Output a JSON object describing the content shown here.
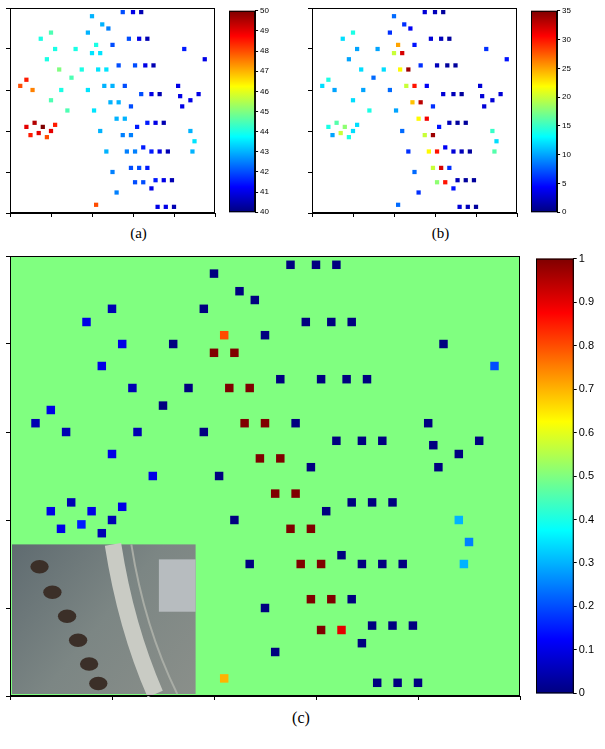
{
  "chart_data": [
    {
      "type": "scatter",
      "title": "(a)",
      "xlim": [
        0,
        100
      ],
      "ylim": [
        0,
        100
      ],
      "xticks": [
        0,
        20,
        40,
        60,
        80,
        100
      ],
      "yticks": [
        0,
        20,
        40,
        60,
        80,
        100
      ],
      "tick_labels": false,
      "colorbar": {
        "range": [
          40,
          50
        ],
        "ticks": [
          40,
          41,
          42,
          43,
          44,
          45,
          46,
          47,
          48,
          49,
          50
        ]
      },
      "points": [
        [
          40,
          78,
          43.5
        ],
        [
          43,
          70,
          43.5
        ],
        [
          46,
          62,
          43
        ],
        [
          49,
          54,
          43
        ],
        [
          52,
          46,
          43
        ],
        [
          55,
          38,
          42.5
        ],
        [
          57,
          30,
          42.5
        ],
        [
          59,
          22,
          42
        ],
        [
          61,
          15,
          42
        ],
        [
          44,
          78,
          43.5
        ],
        [
          47,
          70,
          43.5
        ],
        [
          50,
          62,
          43
        ],
        [
          53,
          54,
          43
        ],
        [
          56,
          46,
          43
        ],
        [
          59,
          38,
          42.5
        ],
        [
          61,
          30,
          42.5
        ],
        [
          63,
          22,
          42
        ],
        [
          65,
          15,
          42
        ],
        [
          32,
          80,
          44
        ],
        [
          35,
          70,
          44
        ],
        [
          38,
          60,
          43.5
        ],
        [
          41,
          50,
          43.5
        ],
        [
          44,
          40,
          43
        ],
        [
          47,
          30,
          43
        ],
        [
          50,
          20,
          42.5
        ],
        [
          52,
          10,
          42.5
        ],
        [
          50,
          82,
          42
        ],
        [
          53,
          72,
          42
        ],
        [
          56,
          62,
          42
        ],
        [
          59,
          52,
          42
        ],
        [
          62,
          42,
          41.5
        ],
        [
          65,
          32,
          41.5
        ],
        [
          67,
          22,
          41.5
        ],
        [
          69,
          12,
          41
        ],
        [
          48,
          90,
          42.5
        ],
        [
          38,
          88,
          43
        ],
        [
          55,
          98,
          42
        ],
        [
          58,
          85,
          42
        ],
        [
          61,
          72,
          42
        ],
        [
          64,
          58,
          42
        ],
        [
          67,
          44,
          41.5
        ],
        [
          69,
          30,
          41.5
        ],
        [
          71,
          16,
          41.5
        ],
        [
          72,
          3,
          41
        ],
        [
          60,
          98,
          41
        ],
        [
          63,
          85,
          41
        ],
        [
          66,
          72,
          41
        ],
        [
          69,
          58,
          41
        ],
        [
          71,
          44,
          41
        ],
        [
          73,
          30,
          41
        ],
        [
          75,
          16,
          41
        ],
        [
          76,
          3,
          41
        ],
        [
          64,
          98,
          40.5
        ],
        [
          67,
          85,
          40.5
        ],
        [
          70,
          72,
          40.5
        ],
        [
          73,
          58,
          40.5
        ],
        [
          75,
          44,
          40.5
        ],
        [
          77,
          30,
          40.5
        ],
        [
          79,
          16,
          40.5
        ],
        [
          80,
          3,
          40.5
        ],
        [
          40,
          96,
          43
        ],
        [
          45,
          92,
          43
        ],
        [
          8,
          42,
          49
        ],
        [
          12,
          44,
          49.5
        ],
        [
          16,
          42,
          50
        ],
        [
          20,
          40,
          49
        ],
        [
          10,
          38,
          48.5
        ],
        [
          14,
          39,
          49
        ],
        [
          18,
          37,
          48
        ],
        [
          22,
          43,
          48.5
        ],
        [
          5,
          62,
          48
        ],
        [
          8,
          65,
          48.5
        ],
        [
          11,
          60,
          47.5
        ],
        [
          20,
          55,
          44.5
        ],
        [
          25,
          60,
          44
        ],
        [
          28,
          50,
          44.5
        ],
        [
          24,
          70,
          45
        ],
        [
          18,
          75,
          44
        ],
        [
          30,
          66,
          44.5
        ],
        [
          42,
          4,
          48
        ],
        [
          88,
          40,
          43
        ],
        [
          90,
          35,
          43.5
        ],
        [
          89,
          30,
          43
        ],
        [
          82,
          62,
          41
        ],
        [
          83,
          57,
          41
        ],
        [
          84,
          52,
          41
        ],
        [
          88,
          55,
          41
        ],
        [
          92,
          58,
          41
        ],
        [
          95,
          75,
          41
        ],
        [
          85,
          80,
          41.5
        ],
        [
          15,
          85,
          44
        ],
        [
          20,
          88,
          44.5
        ],
        [
          22,
          80,
          44
        ],
        [
          42,
          82,
          44
        ]
      ]
    },
    {
      "type": "scatter",
      "title": "(b)",
      "xlim": [
        0,
        100
      ],
      "ylim": [
        0,
        100
      ],
      "xticks": [
        0,
        20,
        40,
        60,
        80,
        100
      ],
      "yticks": [
        0,
        20,
        40,
        60,
        80,
        100
      ],
      "tick_labels": false,
      "colorbar": {
        "range": [
          0,
          35
        ],
        "ticks": [
          0,
          5,
          10,
          15,
          20,
          25,
          30,
          35
        ]
      },
      "points": [
        [
          40,
          78,
          20
        ],
        [
          43,
          70,
          22
        ],
        [
          46,
          62,
          20
        ],
        [
          49,
          54,
          24
        ],
        [
          52,
          46,
          22
        ],
        [
          55,
          38,
          20
        ],
        [
          57,
          30,
          22
        ],
        [
          59,
          22,
          20
        ],
        [
          61,
          15,
          18
        ],
        [
          44,
          78,
          32
        ],
        [
          47,
          70,
          34
        ],
        [
          50,
          62,
          30
        ],
        [
          53,
          54,
          33
        ],
        [
          56,
          46,
          31
        ],
        [
          59,
          38,
          34
        ],
        [
          61,
          30,
          30
        ],
        [
          63,
          22,
          32
        ],
        [
          65,
          15,
          30
        ],
        [
          32,
          80,
          10
        ],
        [
          35,
          70,
          12
        ],
        [
          38,
          60,
          8
        ],
        [
          41,
          50,
          10
        ],
        [
          44,
          40,
          8
        ],
        [
          47,
          30,
          6
        ],
        [
          50,
          20,
          8
        ],
        [
          52,
          10,
          6
        ],
        [
          50,
          82,
          5
        ],
        [
          53,
          72,
          6
        ],
        [
          56,
          62,
          4
        ],
        [
          59,
          52,
          6
        ],
        [
          62,
          42,
          5
        ],
        [
          65,
          32,
          4
        ],
        [
          67,
          22,
          6
        ],
        [
          69,
          12,
          5
        ],
        [
          48,
          90,
          4
        ],
        [
          38,
          88,
          6
        ],
        [
          55,
          98,
          3
        ],
        [
          58,
          85,
          3
        ],
        [
          61,
          72,
          2
        ],
        [
          64,
          58,
          3
        ],
        [
          67,
          44,
          2
        ],
        [
          69,
          30,
          3
        ],
        [
          71,
          16,
          2
        ],
        [
          72,
          3,
          3
        ],
        [
          60,
          98,
          2
        ],
        [
          63,
          85,
          2
        ],
        [
          66,
          72,
          1
        ],
        [
          69,
          58,
          2
        ],
        [
          71,
          44,
          1
        ],
        [
          73,
          30,
          2
        ],
        [
          75,
          16,
          1
        ],
        [
          76,
          3,
          2
        ],
        [
          64,
          98,
          1
        ],
        [
          67,
          85,
          1
        ],
        [
          70,
          72,
          1
        ],
        [
          73,
          58,
          1
        ],
        [
          75,
          44,
          1
        ],
        [
          77,
          30,
          1
        ],
        [
          79,
          16,
          1
        ],
        [
          80,
          3,
          1
        ],
        [
          40,
          96,
          8
        ],
        [
          45,
          92,
          6
        ],
        [
          8,
          42,
          14
        ],
        [
          12,
          44,
          16
        ],
        [
          16,
          42,
          18
        ],
        [
          20,
          40,
          12
        ],
        [
          10,
          38,
          10
        ],
        [
          14,
          39,
          20
        ],
        [
          18,
          37,
          14
        ],
        [
          22,
          43,
          12
        ],
        [
          5,
          62,
          12
        ],
        [
          8,
          65,
          14
        ],
        [
          11,
          60,
          10
        ],
        [
          20,
          55,
          12
        ],
        [
          25,
          60,
          10
        ],
        [
          28,
          50,
          14
        ],
        [
          24,
          70,
          12
        ],
        [
          18,
          75,
          10
        ],
        [
          30,
          66,
          8
        ],
        [
          42,
          4,
          8
        ],
        [
          88,
          40,
          15
        ],
        [
          90,
          35,
          12
        ],
        [
          89,
          30,
          16
        ],
        [
          82,
          62,
          3
        ],
        [
          83,
          57,
          3
        ],
        [
          84,
          52,
          3
        ],
        [
          88,
          55,
          3
        ],
        [
          92,
          58,
          3
        ],
        [
          95,
          75,
          5
        ],
        [
          85,
          80,
          6
        ],
        [
          15,
          85,
          12
        ],
        [
          20,
          88,
          14
        ],
        [
          22,
          80,
          10
        ],
        [
          42,
          82,
          25
        ]
      ]
    },
    {
      "type": "scatter",
      "title": "(c)",
      "xlim": [
        0,
        100
      ],
      "ylim": [
        0,
        100
      ],
      "xticks": [
        0,
        20,
        40,
        60,
        80,
        100
      ],
      "yticks": [
        0,
        20,
        40,
        60,
        80,
        100
      ],
      "tick_labels": false,
      "colorbar": {
        "range": [
          0,
          1
        ],
        "ticks": [
          0,
          0.1,
          0.2,
          0.3,
          0.4,
          0.5,
          0.6,
          0.7,
          0.8,
          0.9,
          1
        ]
      },
      "fill_value": 0.5,
      "points": [
        [
          40,
          78,
          1
        ],
        [
          43,
          70,
          1
        ],
        [
          46,
          62,
          1
        ],
        [
          49,
          54,
          1
        ],
        [
          52,
          46,
          1
        ],
        [
          55,
          38,
          1
        ],
        [
          57,
          30,
          1
        ],
        [
          59,
          22,
          1
        ],
        [
          61,
          15,
          1
        ],
        [
          44,
          78,
          1
        ],
        [
          47,
          70,
          1
        ],
        [
          50,
          62,
          1
        ],
        [
          53,
          54,
          1
        ],
        [
          56,
          46,
          1
        ],
        [
          59,
          38,
          1
        ],
        [
          61,
          30,
          1
        ],
        [
          63,
          22,
          1
        ],
        [
          65,
          15,
          0.9
        ],
        [
          32,
          80,
          0
        ],
        [
          35,
          70,
          0
        ],
        [
          38,
          60,
          0
        ],
        [
          41,
          50,
          0
        ],
        [
          44,
          40,
          0
        ],
        [
          47,
          30,
          0
        ],
        [
          50,
          20,
          0
        ],
        [
          52,
          10,
          0
        ],
        [
          50,
          82,
          0
        ],
        [
          53,
          72,
          0
        ],
        [
          56,
          62,
          0
        ],
        [
          59,
          52,
          0
        ],
        [
          62,
          42,
          0
        ],
        [
          65,
          32,
          0
        ],
        [
          67,
          22,
          0
        ],
        [
          69,
          12,
          0
        ],
        [
          48,
          90,
          0
        ],
        [
          38,
          88,
          0
        ],
        [
          55,
          98,
          0
        ],
        [
          58,
          85,
          0
        ],
        [
          61,
          72,
          0
        ],
        [
          64,
          58,
          0
        ],
        [
          67,
          44,
          0
        ],
        [
          69,
          30,
          0
        ],
        [
          71,
          16,
          0
        ],
        [
          72,
          3,
          0
        ],
        [
          60,
          98,
          0
        ],
        [
          63,
          85,
          0
        ],
        [
          66,
          72,
          0
        ],
        [
          69,
          58,
          0
        ],
        [
          71,
          44,
          0
        ],
        [
          73,
          30,
          0
        ],
        [
          75,
          16,
          0
        ],
        [
          76,
          3,
          0
        ],
        [
          64,
          98,
          0
        ],
        [
          67,
          85,
          0
        ],
        [
          70,
          72,
          0
        ],
        [
          73,
          58,
          0
        ],
        [
          75,
          44,
          0
        ],
        [
          77,
          30,
          0
        ],
        [
          79,
          16,
          0
        ],
        [
          80,
          3,
          0
        ],
        [
          40,
          96,
          0
        ],
        [
          45,
          92,
          0
        ],
        [
          8,
          42,
          0.1
        ],
        [
          12,
          44,
          0.05
        ],
        [
          16,
          42,
          0.1
        ],
        [
          20,
          40,
          0.05
        ],
        [
          10,
          38,
          0.1
        ],
        [
          14,
          39,
          0.15
        ],
        [
          18,
          37,
          0.05
        ],
        [
          22,
          43,
          0.1
        ],
        [
          5,
          62,
          0.05
        ],
        [
          8,
          65,
          0.1
        ],
        [
          11,
          60,
          0.05
        ],
        [
          20,
          55,
          0.1
        ],
        [
          25,
          60,
          0.05
        ],
        [
          28,
          50,
          0.1
        ],
        [
          24,
          70,
          0.05
        ],
        [
          18,
          75,
          0.1
        ],
        [
          30,
          66,
          0
        ],
        [
          42,
          4,
          0.7
        ],
        [
          88,
          40,
          0.3
        ],
        [
          90,
          35,
          0.25
        ],
        [
          89,
          30,
          0.3
        ],
        [
          82,
          62,
          0
        ],
        [
          83,
          57,
          0
        ],
        [
          84,
          52,
          0
        ],
        [
          88,
          55,
          0
        ],
        [
          92,
          58,
          0
        ],
        [
          95,
          75,
          0.2
        ],
        [
          85,
          80,
          0
        ],
        [
          15,
          85,
          0.1
        ],
        [
          20,
          88,
          0.05
        ],
        [
          22,
          80,
          0.1
        ],
        [
          42,
          82,
          0.8
        ]
      ]
    }
  ]
}
